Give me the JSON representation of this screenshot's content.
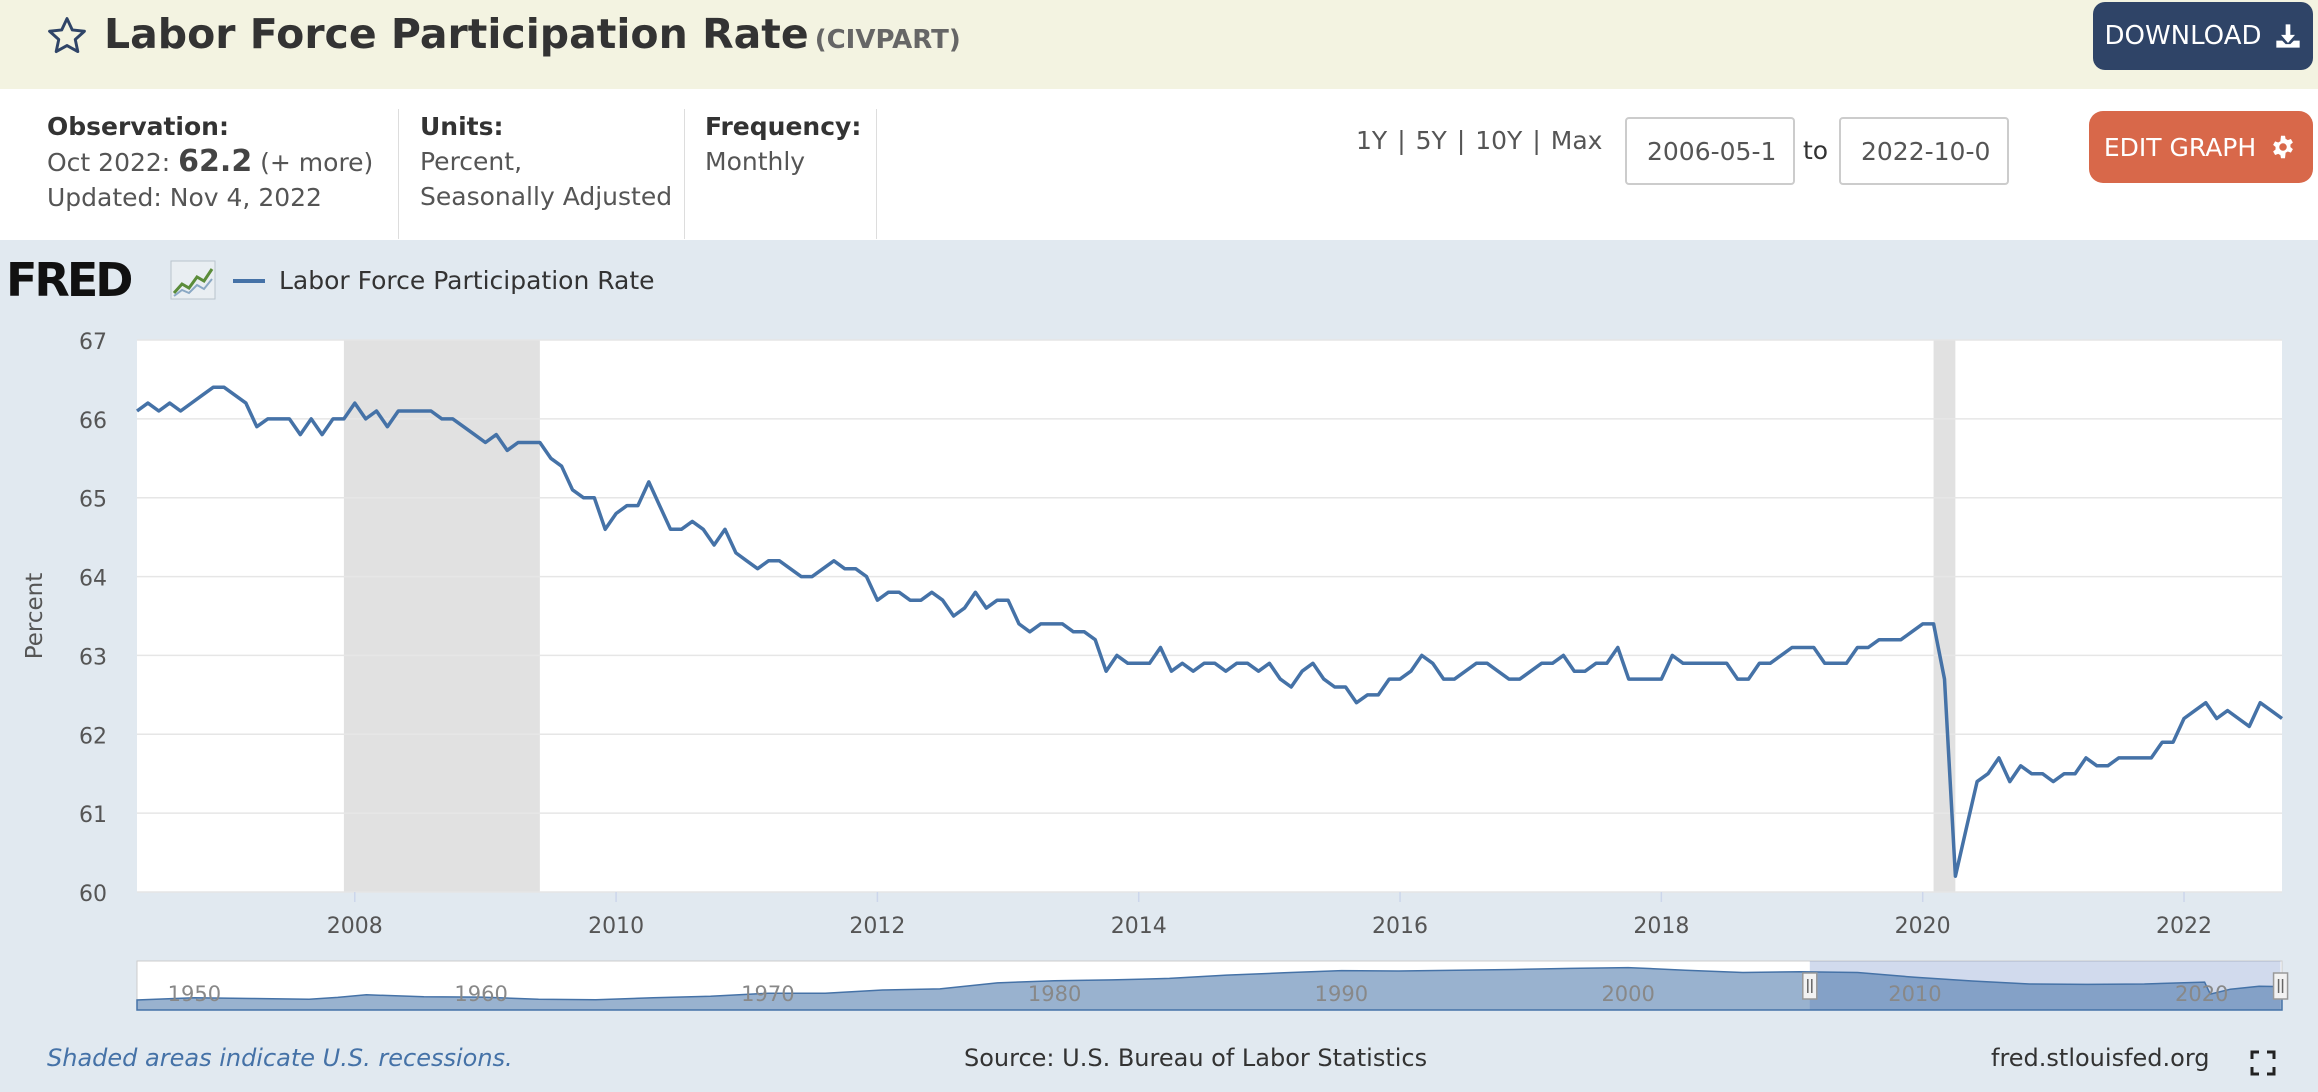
{
  "header": {
    "title": "Labor Force Participation Rate",
    "series_id": "(CIVPART)",
    "download_label": "DOWNLOAD"
  },
  "info": {
    "observation_label": "Observation:",
    "observation_date": "Oct 2022:",
    "observation_value": "62.2",
    "observation_more": "(+ more)",
    "updated": "Updated: Nov 4, 2022",
    "units_label": "Units:",
    "units_line1": "Percent,",
    "units_line2": "Seasonally Adjusted",
    "frequency_label": "Frequency:",
    "frequency_value": "Monthly"
  },
  "range": {
    "links": [
      "1Y",
      "5Y",
      "10Y",
      "Max"
    ],
    "start_date": "2006-05-1",
    "to_label": "to",
    "end_date": "2022-10-0",
    "edit_label": "EDIT GRAPH"
  },
  "chart_header": {
    "logo": "FRED",
    "legend_label": "Labor Force Participation Rate"
  },
  "footer": {
    "note": "Shaded areas indicate U.S. recessions.",
    "source": "Source: U.S. Bureau of Labor Statistics",
    "site": "fred.stlouisfed.org"
  },
  "colors": {
    "series": "#4572a7",
    "recession": "#e1e1e1",
    "download": "#2f4467",
    "edit": "#d8684a"
  },
  "chart_data": {
    "type": "line",
    "ylabel": "Percent",
    "ylim": [
      60,
      67
    ],
    "yticks": [
      60,
      61,
      62,
      63,
      64,
      65,
      66,
      67
    ],
    "xlim": [
      "2006-05",
      "2022-10"
    ],
    "xticks": [
      "2008",
      "2010",
      "2012",
      "2014",
      "2016",
      "2018",
      "2020",
      "2022"
    ],
    "grid": true,
    "legend_position": "top-left",
    "recessions": [
      [
        "2007-12",
        "2009-06"
      ],
      [
        "2020-02",
        "2020-04"
      ]
    ],
    "series": [
      {
        "name": "Labor Force Participation Rate",
        "points": [
          [
            "2006-05",
            66.1
          ],
          [
            "2006-06",
            66.2
          ],
          [
            "2006-07",
            66.1
          ],
          [
            "2006-08",
            66.2
          ],
          [
            "2006-09",
            66.1
          ],
          [
            "2006-10",
            66.2
          ],
          [
            "2006-11",
            66.3
          ],
          [
            "2006-12",
            66.4
          ],
          [
            "2007-01",
            66.4
          ],
          [
            "2007-02",
            66.3
          ],
          [
            "2007-03",
            66.2
          ],
          [
            "2007-04",
            65.9
          ],
          [
            "2007-05",
            66.0
          ],
          [
            "2007-06",
            66.0
          ],
          [
            "2007-07",
            66.0
          ],
          [
            "2007-08",
            65.8
          ],
          [
            "2007-09",
            66.0
          ],
          [
            "2007-10",
            65.8
          ],
          [
            "2007-11",
            66.0
          ],
          [
            "2007-12",
            66.0
          ],
          [
            "2008-01",
            66.2
          ],
          [
            "2008-02",
            66.0
          ],
          [
            "2008-03",
            66.1
          ],
          [
            "2008-04",
            65.9
          ],
          [
            "2008-05",
            66.1
          ],
          [
            "2008-06",
            66.1
          ],
          [
            "2008-07",
            66.1
          ],
          [
            "2008-08",
            66.1
          ],
          [
            "2008-09",
            66.0
          ],
          [
            "2008-10",
            66.0
          ],
          [
            "2008-11",
            65.9
          ],
          [
            "2008-12",
            65.8
          ],
          [
            "2009-01",
            65.7
          ],
          [
            "2009-02",
            65.8
          ],
          [
            "2009-03",
            65.6
          ],
          [
            "2009-04",
            65.7
          ],
          [
            "2009-05",
            65.7
          ],
          [
            "2009-06",
            65.7
          ],
          [
            "2009-07",
            65.5
          ],
          [
            "2009-08",
            65.4
          ],
          [
            "2009-09",
            65.1
          ],
          [
            "2009-10",
            65.0
          ],
          [
            "2009-11",
            65.0
          ],
          [
            "2009-12",
            64.6
          ],
          [
            "2010-01",
            64.8
          ],
          [
            "2010-02",
            64.9
          ],
          [
            "2010-03",
            64.9
          ],
          [
            "2010-04",
            65.2
          ],
          [
            "2010-05",
            64.9
          ],
          [
            "2010-06",
            64.6
          ],
          [
            "2010-07",
            64.6
          ],
          [
            "2010-08",
            64.7
          ],
          [
            "2010-09",
            64.6
          ],
          [
            "2010-10",
            64.4
          ],
          [
            "2010-11",
            64.6
          ],
          [
            "2010-12",
            64.3
          ],
          [
            "2011-01",
            64.2
          ],
          [
            "2011-02",
            64.1
          ],
          [
            "2011-03",
            64.2
          ],
          [
            "2011-04",
            64.2
          ],
          [
            "2011-05",
            64.1
          ],
          [
            "2011-06",
            64.0
          ],
          [
            "2011-07",
            64.0
          ],
          [
            "2011-08",
            64.1
          ],
          [
            "2011-09",
            64.2
          ],
          [
            "2011-10",
            64.1
          ],
          [
            "2011-11",
            64.1
          ],
          [
            "2011-12",
            64.0
          ],
          [
            "2012-01",
            63.7
          ],
          [
            "2012-02",
            63.8
          ],
          [
            "2012-03",
            63.8
          ],
          [
            "2012-04",
            63.7
          ],
          [
            "2012-05",
            63.7
          ],
          [
            "2012-06",
            63.8
          ],
          [
            "2012-07",
            63.7
          ],
          [
            "2012-08",
            63.5
          ],
          [
            "2012-09",
            63.6
          ],
          [
            "2012-10",
            63.8
          ],
          [
            "2012-11",
            63.6
          ],
          [
            "2012-12",
            63.7
          ],
          [
            "2013-01",
            63.7
          ],
          [
            "2013-02",
            63.4
          ],
          [
            "2013-03",
            63.3
          ],
          [
            "2013-04",
            63.4
          ],
          [
            "2013-05",
            63.4
          ],
          [
            "2013-06",
            63.4
          ],
          [
            "2013-07",
            63.3
          ],
          [
            "2013-08",
            63.3
          ],
          [
            "2013-09",
            63.2
          ],
          [
            "2013-10",
            62.8
          ],
          [
            "2013-11",
            63.0
          ],
          [
            "2013-12",
            62.9
          ],
          [
            "2014-01",
            62.9
          ],
          [
            "2014-02",
            62.9
          ],
          [
            "2014-03",
            63.1
          ],
          [
            "2014-04",
            62.8
          ],
          [
            "2014-05",
            62.9
          ],
          [
            "2014-06",
            62.8
          ],
          [
            "2014-07",
            62.9
          ],
          [
            "2014-08",
            62.9
          ],
          [
            "2014-09",
            62.8
          ],
          [
            "2014-10",
            62.9
          ],
          [
            "2014-11",
            62.9
          ],
          [
            "2014-12",
            62.8
          ],
          [
            "2015-01",
            62.9
          ],
          [
            "2015-02",
            62.7
          ],
          [
            "2015-03",
            62.6
          ],
          [
            "2015-04",
            62.8
          ],
          [
            "2015-05",
            62.9
          ],
          [
            "2015-06",
            62.7
          ],
          [
            "2015-07",
            62.6
          ],
          [
            "2015-08",
            62.6
          ],
          [
            "2015-09",
            62.4
          ],
          [
            "2015-10",
            62.5
          ],
          [
            "2015-11",
            62.5
          ],
          [
            "2015-12",
            62.7
          ],
          [
            "2016-01",
            62.7
          ],
          [
            "2016-02",
            62.8
          ],
          [
            "2016-03",
            63.0
          ],
          [
            "2016-04",
            62.9
          ],
          [
            "2016-05",
            62.7
          ],
          [
            "2016-06",
            62.7
          ],
          [
            "2016-07",
            62.8
          ],
          [
            "2016-08",
            62.9
          ],
          [
            "2016-09",
            62.9
          ],
          [
            "2016-10",
            62.8
          ],
          [
            "2016-11",
            62.7
          ],
          [
            "2016-12",
            62.7
          ],
          [
            "2017-01",
            62.8
          ],
          [
            "2017-02",
            62.9
          ],
          [
            "2017-03",
            62.9
          ],
          [
            "2017-04",
            63.0
          ],
          [
            "2017-05",
            62.8
          ],
          [
            "2017-06",
            62.8
          ],
          [
            "2017-07",
            62.9
          ],
          [
            "2017-08",
            62.9
          ],
          [
            "2017-09",
            63.1
          ],
          [
            "2017-10",
            62.7
          ],
          [
            "2017-11",
            62.7
          ],
          [
            "2017-12",
            62.7
          ],
          [
            "2018-01",
            62.7
          ],
          [
            "2018-02",
            63.0
          ],
          [
            "2018-03",
            62.9
          ],
          [
            "2018-04",
            62.9
          ],
          [
            "2018-05",
            62.9
          ],
          [
            "2018-06",
            62.9
          ],
          [
            "2018-07",
            62.9
          ],
          [
            "2018-08",
            62.7
          ],
          [
            "2018-09",
            62.7
          ],
          [
            "2018-10",
            62.9
          ],
          [
            "2018-11",
            62.9
          ],
          [
            "2018-12",
            63.0
          ],
          [
            "2019-01",
            63.1
          ],
          [
            "2019-02",
            63.1
          ],
          [
            "2019-03",
            63.1
          ],
          [
            "2019-04",
            62.9
          ],
          [
            "2019-05",
            62.9
          ],
          [
            "2019-06",
            62.9
          ],
          [
            "2019-07",
            63.1
          ],
          [
            "2019-08",
            63.1
          ],
          [
            "2019-09",
            63.2
          ],
          [
            "2019-10",
            63.2
          ],
          [
            "2019-11",
            63.2
          ],
          [
            "2019-12",
            63.3
          ],
          [
            "2020-01",
            63.4
          ],
          [
            "2020-02",
            63.4
          ],
          [
            "2020-03",
            62.7
          ],
          [
            "2020-04",
            60.2
          ],
          [
            "2020-05",
            60.8
          ],
          [
            "2020-06",
            61.4
          ],
          [
            "2020-07",
            61.5
          ],
          [
            "2020-08",
            61.7
          ],
          [
            "2020-09",
            61.4
          ],
          [
            "2020-10",
            61.6
          ],
          [
            "2020-11",
            61.5
          ],
          [
            "2020-12",
            61.5
          ],
          [
            "2021-01",
            61.4
          ],
          [
            "2021-02",
            61.5
          ],
          [
            "2021-03",
            61.5
          ],
          [
            "2021-04",
            61.7
          ],
          [
            "2021-05",
            61.6
          ],
          [
            "2021-06",
            61.6
          ],
          [
            "2021-07",
            61.7
          ],
          [
            "2021-08",
            61.7
          ],
          [
            "2021-09",
            61.7
          ],
          [
            "2021-10",
            61.7
          ],
          [
            "2021-11",
            61.9
          ],
          [
            "2021-12",
            61.9
          ],
          [
            "2022-01",
            62.2
          ],
          [
            "2022-02",
            62.3
          ],
          [
            "2022-03",
            62.4
          ],
          [
            "2022-04",
            62.2
          ],
          [
            "2022-05",
            62.3
          ],
          [
            "2022-06",
            62.2
          ],
          [
            "2022-07",
            62.1
          ],
          [
            "2022-08",
            62.4
          ],
          [
            "2022-09",
            62.3
          ],
          [
            "2022-10",
            62.2
          ]
        ]
      }
    ],
    "navigator": {
      "xticks": [
        "1950",
        "1960",
        "1970",
        "1980",
        "1990",
        "2000",
        "2010",
        "2020"
      ],
      "xlim": [
        1948,
        2022.8
      ],
      "selection": [
        "2006-05",
        "2022-10"
      ],
      "outline": [
        [
          1948,
          58.6
        ],
        [
          1950,
          59.2
        ],
        [
          1952,
          59.0
        ],
        [
          1954,
          58.8
        ],
        [
          1955,
          59.3
        ],
        [
          1956,
          60.0
        ],
        [
          1958,
          59.5
        ],
        [
          1960,
          59.4
        ],
        [
          1962,
          58.8
        ],
        [
          1964,
          58.7
        ],
        [
          1966,
          59.2
        ],
        [
          1968,
          59.6
        ],
        [
          1970,
          60.4
        ],
        [
          1972,
          60.4
        ],
        [
          1974,
          61.3
        ],
        [
          1976,
          61.6
        ],
        [
          1978,
          63.2
        ],
        [
          1980,
          63.8
        ],
        [
          1982,
          64.0
        ],
        [
          1984,
          64.4
        ],
        [
          1986,
          65.3
        ],
        [
          1988,
          65.9
        ],
        [
          1990,
          66.5
        ],
        [
          1992,
          66.4
        ],
        [
          1994,
          66.6
        ],
        [
          1996,
          66.8
        ],
        [
          1998,
          67.1
        ],
        [
          2000,
          67.3
        ],
        [
          2002,
          66.6
        ],
        [
          2004,
          66.0
        ],
        [
          2006,
          66.2
        ],
        [
          2008,
          66.0
        ],
        [
          2010,
          64.7
        ],
        [
          2012,
          63.7
        ],
        [
          2014,
          62.9
        ],
        [
          2016,
          62.8
        ],
        [
          2018,
          62.9
        ],
        [
          2020.1,
          63.4
        ],
        [
          2020.3,
          60.2
        ],
        [
          2021,
          61.5
        ],
        [
          2022,
          62.3
        ],
        [
          2022.8,
          62.2
        ]
      ]
    }
  }
}
